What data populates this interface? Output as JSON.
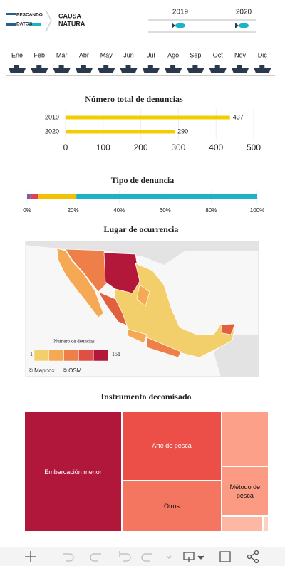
{
  "header": {
    "logo_left": [
      "PESCANDO",
      "DATOS"
    ],
    "logo_right": [
      "CAUSA",
      "NATURA"
    ]
  },
  "years": [
    "2019",
    "2020"
  ],
  "months": [
    "Ene",
    "Feb",
    "Mar",
    "Abr",
    "May",
    "Jun",
    "Jul",
    "Ago",
    "Sep",
    "Oct",
    "Nov",
    "Dic"
  ],
  "chart_data": [
    {
      "type": "bar",
      "orientation": "horizontal",
      "title": "Número total de denuncias",
      "categories": [
        "2019",
        "2020"
      ],
      "values": [
        437,
        290
      ],
      "color": "#f5cc00",
      "xlim": [
        0,
        500
      ],
      "xticks": [
        0,
        100,
        200,
        300,
        400,
        500
      ],
      "grid": true
    },
    {
      "type": "stacked-bar",
      "orientation": "horizontal",
      "title": "Tipo de denuncia",
      "series": [
        {
          "color": "#7b5ea7",
          "values": [
            1.5
          ]
        },
        {
          "color": "#e0405a",
          "values": [
            3.5
          ]
        },
        {
          "color": "#f2c200",
          "values": [
            16.4
          ]
        },
        {
          "color": "#1ab3c8",
          "values": [
            78.6
          ]
        }
      ],
      "xlim": [
        0,
        100
      ],
      "xticks": [
        {
          "value": 0,
          "label": "0%"
        },
        {
          "value": 20,
          "label": "20%"
        },
        {
          "value": 40,
          "label": "40%"
        },
        {
          "value": 60,
          "label": "60%"
        },
        {
          "value": 80,
          "label": "80%"
        },
        {
          "value": 100,
          "label": "100%"
        }
      ],
      "grid": true
    },
    {
      "type": "choropleth",
      "title": "Lugar de ocurrencia",
      "legend": {
        "title": "Numero de deuncias",
        "min": 1,
        "max": 151,
        "colors": [
          "#f3cf6b",
          "#f6a955",
          "#ef7f48",
          "#e04f45",
          "#b3173a"
        ]
      },
      "attribution": [
        "© Mapbox",
        "© OSM"
      ]
    },
    {
      "type": "treemap",
      "title": "Instrumento decomisado",
      "categories": [
        "Embarcación menor",
        "Arte de pesca",
        "Otros",
        null,
        "Método de pesca",
        null,
        null
      ],
      "values": [
        40,
        23.4,
        17.4,
        8.8,
        8,
        2.2,
        0.3
      ],
      "colors": [
        "#b0173a",
        "#ec4f47",
        "#f47560",
        "#fca08a",
        "#fc9b84",
        "#fcb8a5",
        "#fdd0c2"
      ]
    }
  ]
}
